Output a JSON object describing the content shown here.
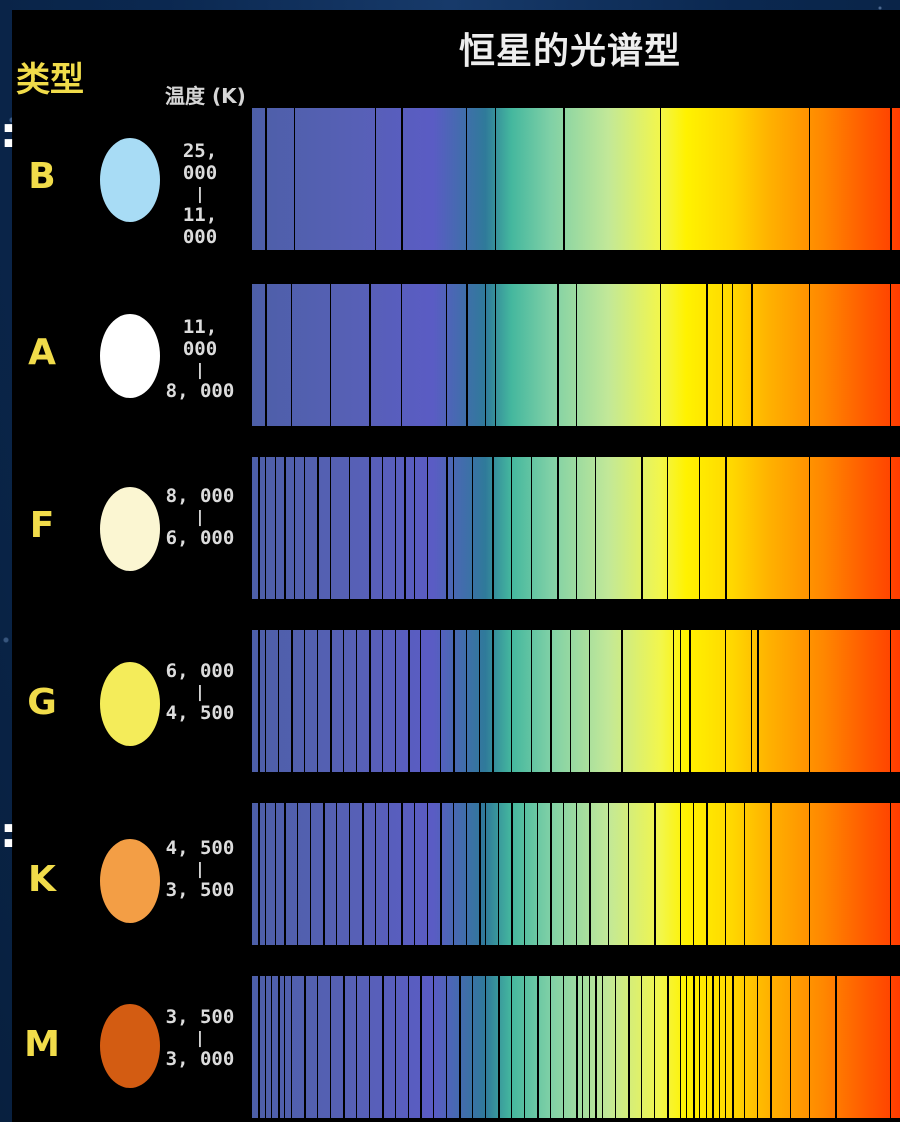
{
  "title": "恒星的光谱型",
  "headers": {
    "type": "类型",
    "temperature": "温度 (K)"
  },
  "edge_marks": [
    ":",
    ":"
  ],
  "rows": [
    {
      "type": "B",
      "color": "#a8dcf5",
      "temp_high": "25, 000",
      "separator": "|",
      "temp_low": "11, 000",
      "lines": [
        0.02,
        0.065,
        0.19,
        0.23,
        0.33,
        0.375,
        0.48,
        0.63,
        0.86,
        0.985
      ]
    },
    {
      "type": "A",
      "color": "#ffffff",
      "temp_high": "11, 000",
      "separator": "|",
      "temp_low": "8, 000",
      "lines": [
        0.02,
        0.06,
        0.12,
        0.18,
        0.23,
        0.3,
        0.33,
        0.36,
        0.375,
        0.47,
        0.5,
        0.63,
        0.7,
        0.725,
        0.74,
        0.77,
        0.86,
        0.985
      ]
    },
    {
      "type": "F",
      "color": "#fbf6d2",
      "temp_high": "8, 000",
      "separator": "|",
      "temp_low": "6, 000",
      "lines": [
        0.01,
        0.02,
        0.035,
        0.05,
        0.065,
        0.08,
        0.1,
        0.12,
        0.15,
        0.18,
        0.2,
        0.22,
        0.235,
        0.25,
        0.27,
        0.3,
        0.31,
        0.34,
        0.37,
        0.4,
        0.43,
        0.47,
        0.5,
        0.53,
        0.6,
        0.64,
        0.69,
        0.73,
        0.86,
        0.985
      ]
    },
    {
      "type": "G",
      "color": "#f4ec5a",
      "temp_high": "6, 000",
      "separator": "|",
      "temp_low": "4, 500",
      "lines": [
        0.01,
        0.02,
        0.04,
        0.06,
        0.08,
        0.1,
        0.12,
        0.14,
        0.16,
        0.18,
        0.2,
        0.22,
        0.24,
        0.26,
        0.29,
        0.31,
        0.33,
        0.35,
        0.37,
        0.4,
        0.43,
        0.46,
        0.49,
        0.52,
        0.57,
        0.65,
        0.66,
        0.675,
        0.73,
        0.77,
        0.78,
        0.86,
        0.985
      ]
    },
    {
      "type": "K",
      "color": "#f39e45",
      "temp_high": "4, 500",
      "separator": "|",
      "temp_low": "3, 500",
      "lines": [
        0.01,
        0.02,
        0.035,
        0.05,
        0.07,
        0.09,
        0.11,
        0.13,
        0.15,
        0.17,
        0.19,
        0.21,
        0.23,
        0.25,
        0.27,
        0.29,
        0.31,
        0.33,
        0.35,
        0.36,
        0.38,
        0.4,
        0.42,
        0.44,
        0.46,
        0.48,
        0.5,
        0.52,
        0.55,
        0.58,
        0.62,
        0.66,
        0.68,
        0.7,
        0.73,
        0.76,
        0.8,
        0.86,
        0.985
      ]
    },
    {
      "type": "M",
      "color": "#d35c12",
      "temp_high": "3, 500",
      "separator": "|",
      "temp_low": "3, 000",
      "lines": [
        0.01,
        0.02,
        0.03,
        0.04,
        0.05,
        0.06,
        0.08,
        0.1,
        0.12,
        0.14,
        0.16,
        0.18,
        0.2,
        0.22,
        0.24,
        0.26,
        0.28,
        0.3,
        0.32,
        0.34,
        0.36,
        0.38,
        0.4,
        0.42,
        0.44,
        0.46,
        0.48,
        0.5,
        0.51,
        0.52,
        0.53,
        0.54,
        0.56,
        0.58,
        0.6,
        0.62,
        0.64,
        0.66,
        0.67,
        0.68,
        0.69,
        0.7,
        0.71,
        0.72,
        0.73,
        0.74,
        0.76,
        0.78,
        0.8,
        0.83,
        0.86,
        0.9,
        0.985
      ]
    }
  ]
}
